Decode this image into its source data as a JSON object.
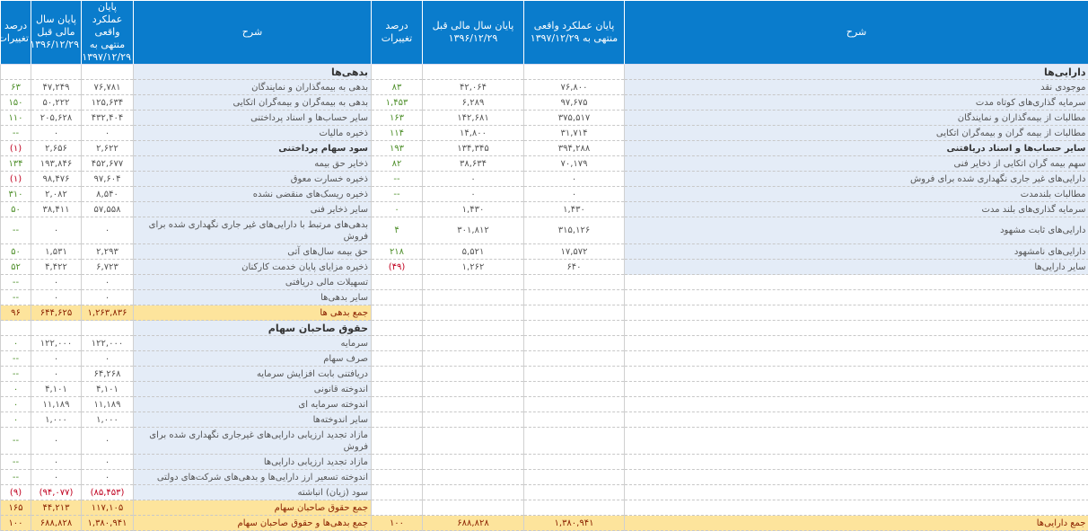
{
  "colors": {
    "header": "#0a7ccc",
    "description_bg": "#e4ecf7",
    "total_bg": "#fde49c",
    "positive": "#4e8f2a",
    "negative": "#c0001f"
  },
  "headers": {
    "assets": {
      "desc": "شرح",
      "current": "پایان عملکرد واقعی منتهی به ۱۳۹۷/۱۲/۲۹",
      "previous": "پایان سال مالی قبل ۱۳۹۶/۱۲/۲۹",
      "pct": "درصد تغییرات"
    },
    "liabilities": {
      "desc": "شرح",
      "current": "پایان عملکرد واقعی منتهی به ۱۳۹۷/۱۲/۲۹",
      "previous": "پایان سال مالی قبل ۱۳۹۶/۱۲/۲۹",
      "pct": "درصد تغییرات"
    }
  },
  "assets": {
    "rows": [
      {
        "type": "section",
        "desc": "دارایی‌ها"
      },
      {
        "desc": "موجودی نقد",
        "current": "۷۶,۸۰۰",
        "previous": "۴۲,۰۶۴",
        "pct": "۸۳"
      },
      {
        "desc": "سرمایه گذاری‌های کوتاه مدت",
        "current": "۹۷,۶۷۵",
        "previous": "۶,۲۸۹",
        "pct": "۱,۴۵۳"
      },
      {
        "desc": "مطالبات از بیمه‌گذاران و نمایندگان",
        "current": "۳۷۵,۵۱۷",
        "previous": "۱۴۲,۶۸۱",
        "pct": "۱۶۳"
      },
      {
        "desc": "مطالبات از بیمه گران و بیمه‌گران اتکایی",
        "current": "۳۱,۷۱۴",
        "previous": "۱۴,۸۰۰",
        "pct": "۱۱۴"
      },
      {
        "type": "bold",
        "desc": "سایر حساب‌ها و اسناد دریافتنی",
        "current": "۳۹۴,۲۸۸",
        "previous": "۱۳۴,۳۴۵",
        "pct": "۱۹۳"
      },
      {
        "desc": "سهم بیمه گران اتکایی از ذخایر فنی",
        "current": "۷۰,۱۷۹",
        "previous": "۳۸,۶۳۴",
        "pct": "۸۲"
      },
      {
        "desc": "دارایی‌های غیر جاری نگهداری شده برای فروش",
        "current": "۰",
        "previous": "۰",
        "pct": "--"
      },
      {
        "desc": "مطالبات بلندمدت",
        "current": "۰",
        "previous": "۰",
        "pct": "--"
      },
      {
        "desc": "سرمایه گذاری‌های بلند مدت",
        "current": "۱,۴۳۰",
        "previous": "۱,۴۳۰",
        "pct": "۰"
      },
      {
        "desc": "دارایی‌های ثابت مشهود",
        "current": "۳۱۵,۱۲۶",
        "previous": "۳۰۱,۸۱۲",
        "pct": "۴"
      },
      {
        "desc": "دارایی‌های نامشهود",
        "current": "۱۷,۵۷۲",
        "previous": "۵,۵۲۱",
        "pct": "۲۱۸"
      },
      {
        "desc": "سایر دارایی‌ها",
        "current": "۶۴۰",
        "previous": "۱,۲۶۲",
        "pct": "(۴۹)"
      }
    ],
    "total": {
      "desc": "جمع دارایی‌ها",
      "current": "۱,۳۸۰,۹۴۱",
      "previous": "۶۸۸,۸۲۸",
      "pct": "۱۰۰"
    }
  },
  "liabilities": {
    "rows": [
      {
        "type": "section",
        "desc": "بدهی‌ها"
      },
      {
        "desc": "بدهی به بیمه‌گذاران و نمایندگان",
        "current": "۷۶,۷۸۱",
        "previous": "۴۷,۲۴۹",
        "pct": "۶۳"
      },
      {
        "desc": "بدهی به بیمه‌گران و بیمه‌گران اتکایی",
        "current": "۱۲۵,۶۳۴",
        "previous": "۵۰,۲۲۲",
        "pct": "۱۵۰"
      },
      {
        "desc": "سایر حساب‌ها و اسناد پرداختنی",
        "current": "۴۳۲,۴۰۴",
        "previous": "۲۰۵,۶۲۸",
        "pct": "۱۱۰"
      },
      {
        "desc": "ذخیره مالیات",
        "current": "۰",
        "previous": "۰",
        "pct": "--"
      },
      {
        "type": "bold",
        "desc": "سود سهام پرداختنی",
        "current": "۲,۶۲۲",
        "previous": "۲,۶۵۶",
        "pct": "(۱)"
      },
      {
        "desc": "ذخایر حق بیمه",
        "current": "۴۵۲,۶۷۷",
        "previous": "۱۹۳,۸۴۶",
        "pct": "۱۳۴"
      },
      {
        "desc": "ذخیره خسارت معوق",
        "current": "۹۷,۶۰۴",
        "previous": "۹۸,۴۷۶",
        "pct": "(۱)"
      },
      {
        "desc": "ذخیره ریسک‌های منقضی نشده",
        "current": "۸,۵۴۰",
        "previous": "۲,۰۸۲",
        "pct": "۳۱۰"
      },
      {
        "desc": "سایر ذخایر فنی",
        "current": "۵۷,۵۵۸",
        "previous": "۳۸,۴۱۱",
        "pct": "۵۰"
      },
      {
        "type": "tall",
        "desc": "بدهی‌های مرتبط با دارایی‌های غیر جاری نگهداری شده برای فروش",
        "current": "۰",
        "previous": "۰",
        "pct": "--"
      },
      {
        "desc": "حق بیمه سال‌های آتی",
        "current": "۲,۲۹۳",
        "previous": "۱,۵۳۱",
        "pct": "۵۰"
      },
      {
        "desc": "ذخیره مزایای پایان خدمت کارکنان",
        "current": "۶,۷۲۳",
        "previous": "۴,۴۲۲",
        "pct": "۵۲"
      },
      {
        "desc": "تسهیلات مالی دریافتی",
        "current": "۰",
        "previous": "۰",
        "pct": "--"
      },
      {
        "desc": "سایر بدهی‌ها",
        "current": "۰",
        "previous": "۰",
        "pct": "--"
      },
      {
        "type": "total",
        "desc": "جمع بدهی ها",
        "current": "۱,۲۶۳,۸۳۶",
        "previous": "۶۴۴,۶۲۵",
        "pct": "۹۶"
      },
      {
        "type": "section",
        "desc": "حقوق صاحبان سهام"
      },
      {
        "desc": "سرمایه",
        "current": "۱۲۲,۰۰۰",
        "previous": "۱۲۲,۰۰۰",
        "pct": "۰"
      },
      {
        "desc": "صرف سهام",
        "current": "۰",
        "previous": "۰",
        "pct": "--"
      },
      {
        "desc": "دریافتنی بابت افزایش سرمایه",
        "current": "۶۴,۲۶۸",
        "previous": "۰",
        "pct": "--"
      },
      {
        "desc": "اندوخته قانونی",
        "current": "۴,۱۰۱",
        "previous": "۴,۱۰۱",
        "pct": "۰"
      },
      {
        "desc": "اندوخته سرمایه ای",
        "current": "۱۱,۱۸۹",
        "previous": "۱۱,۱۸۹",
        "pct": "۰"
      },
      {
        "desc": "سایر اندوخته‌ها",
        "current": "۱,۰۰۰",
        "previous": "۱,۰۰۰",
        "pct": "۰"
      },
      {
        "type": "tall",
        "desc": "مازاد تجدید ارزیابی دارایی‌های غیرجاری نگهداری شده برای فروش",
        "current": "۰",
        "previous": "۰",
        "pct": "--"
      },
      {
        "desc": "مازاد تجدید ارزیابی دارایی‌ها",
        "current": "۰",
        "previous": "۰",
        "pct": "--"
      },
      {
        "desc": "اندوخته تسعیر ارز دارایی‌ها و بدهی‌های شرکت‌های دولتی",
        "current": "۰",
        "previous": "۰",
        "pct": "--"
      },
      {
        "desc": "سود (زیان) انباشته",
        "current": "(۸۵,۴۵۳)",
        "previous": "(۹۴,۰۷۷)",
        "pct": "(۹)"
      },
      {
        "type": "total",
        "desc": "جمع حقوق صاحبان سهام",
        "current": "۱۱۷,۱۰۵",
        "previous": "۴۴,۲۱۳",
        "pct": "۱۶۵"
      }
    ],
    "total": {
      "desc": "جمع بدهی‌ها و حقوق صاحبان سهام",
      "current": "۱,۳۸۰,۹۴۱",
      "previous": "۶۸۸,۸۲۸",
      "pct": "۱۰۰"
    }
  }
}
